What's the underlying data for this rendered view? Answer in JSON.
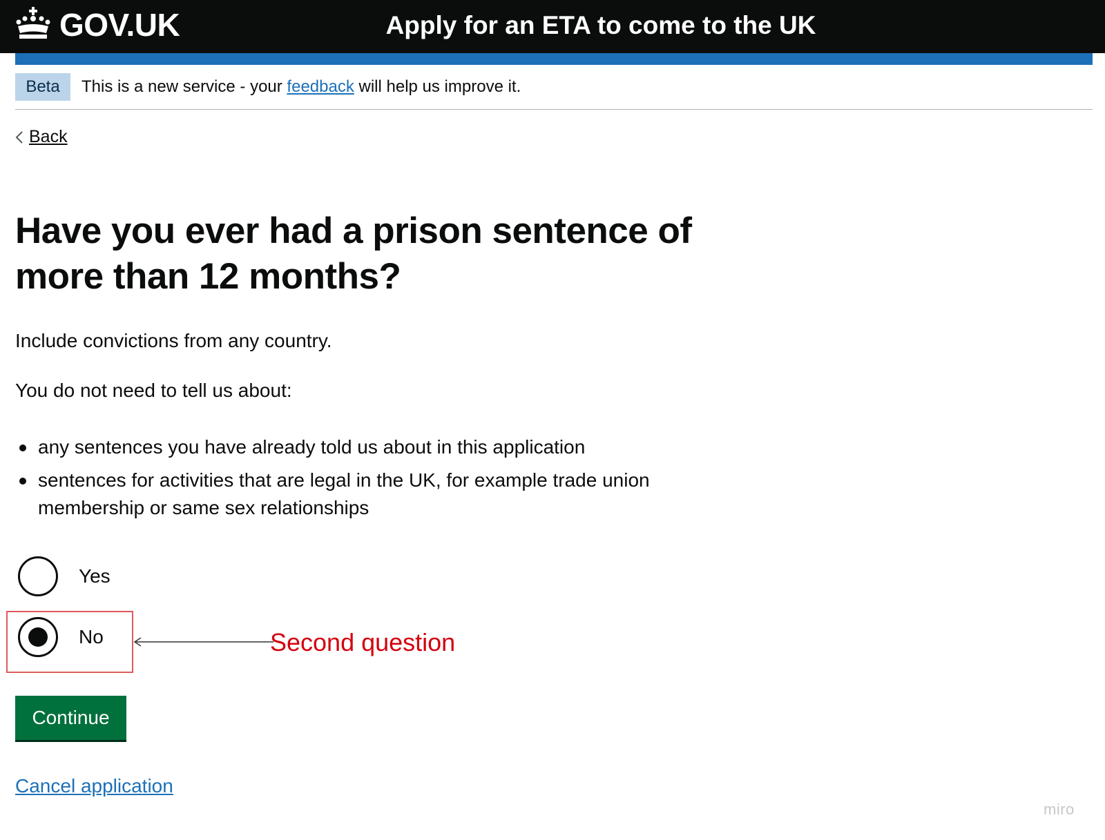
{
  "header": {
    "logo_text": "GOV.UK",
    "service_name": "Apply for an ETA to come to the UK"
  },
  "phase_banner": {
    "tag": "Beta",
    "text_before": "This is a new service - your ",
    "link": "feedback",
    "text_after": " will help us improve it."
  },
  "back_link": "Back",
  "question": {
    "heading": "Have you ever had a prison sentence of more than 12 months?",
    "intro": "Include convictions from any country.",
    "not_needed": "You do not need to tell us about:",
    "bullets": [
      "any sentences you have already told us about in this application",
      "sentences for activities that are legal in the UK, for example trade union membership or same sex relationships"
    ]
  },
  "options": [
    {
      "label": "Yes",
      "selected": false
    },
    {
      "label": "No",
      "selected": true
    }
  ],
  "annotation": "Second question",
  "continue_button": "Continue",
  "cancel_link": "Cancel application",
  "watermark": "miro",
  "colors": {
    "header_bg": "#0b0c0c",
    "header_bar": "#1d70b8",
    "beta_tag_bg": "#bbd4ea",
    "link": "#1d70b8",
    "button": "#00703c",
    "annotation": "#d4000e"
  }
}
